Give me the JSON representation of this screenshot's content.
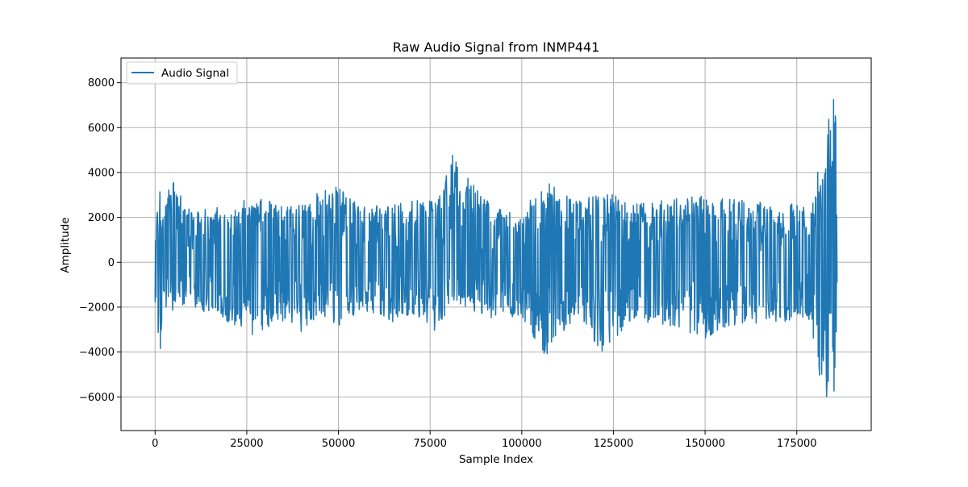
{
  "chart_data": {
    "type": "line",
    "title": "Raw Audio Signal from INMP441",
    "xlabel": "Sample Index",
    "ylabel": "Amplitude",
    "xlim": [
      -9300,
      195300
    ],
    "ylim": [
      -7500,
      9100
    ],
    "xticks": [
      0,
      25000,
      50000,
      75000,
      100000,
      125000,
      150000,
      175000
    ],
    "xtick_labels": [
      "0",
      "25000",
      "50000",
      "75000",
      "100000",
      "125000",
      "150000",
      "175000"
    ],
    "yticks": [
      -6000,
      -4000,
      -2000,
      0,
      2000,
      4000,
      6000,
      8000
    ],
    "ytick_labels": [
      "−6000",
      "−4000",
      "−2000",
      "0",
      "2000",
      "4000",
      "6000",
      "8000"
    ],
    "grid": true,
    "legend": {
      "placement": "upper-left",
      "entries": [
        "Audio Signal"
      ]
    },
    "series": [
      {
        "name": "Audio Signal",
        "color": "#1f77b4",
        "n_samples": 186000,
        "baseline_envelope": [
          [
            0,
            700,
            -2600
          ],
          [
            500,
            2200,
            -2600
          ],
          [
            1200,
            3200,
            -4800
          ],
          [
            2500,
            2900,
            -2000
          ],
          [
            5000,
            3700,
            -2200
          ],
          [
            10000,
            2200,
            -2000
          ],
          [
            26500,
            3000,
            -3300
          ],
          [
            35000,
            2500,
            -2600
          ],
          [
            40000,
            2800,
            -3100
          ],
          [
            46000,
            3200,
            -2400
          ],
          [
            49000,
            3500,
            -3000
          ],
          [
            56000,
            2500,
            -2300
          ],
          [
            65000,
            2600,
            -2700
          ],
          [
            72000,
            2800,
            -2500
          ],
          [
            77000,
            2700,
            -3300
          ],
          [
            81000,
            4850,
            -1800
          ],
          [
            92000,
            2500,
            -2500
          ],
          [
            100000,
            2300,
            -2400
          ],
          [
            107000,
            3800,
            -4500
          ],
          [
            108000,
            3500,
            -3700
          ],
          [
            115000,
            2700,
            -2500
          ],
          [
            122000,
            3200,
            -4000
          ],
          [
            130000,
            2700,
            -2600
          ],
          [
            140000,
            2800,
            -2800
          ],
          [
            150000,
            3000,
            -3400
          ],
          [
            160000,
            2800,
            -2800
          ],
          [
            170000,
            2700,
            -2700
          ],
          [
            178000,
            2500,
            -2500
          ],
          [
            180500,
            3900,
            -4000
          ],
          [
            181500,
            4500,
            -5500
          ],
          [
            182500,
            3500,
            -4200
          ],
          [
            183000,
            5500,
            -6700
          ],
          [
            184000,
            6800,
            -5200
          ],
          [
            184600,
            5000,
            -4700
          ],
          [
            185200,
            8600,
            -6100
          ],
          [
            185700,
            7000,
            -4300
          ],
          [
            186000,
            1500,
            -1200
          ]
        ]
      }
    ]
  }
}
